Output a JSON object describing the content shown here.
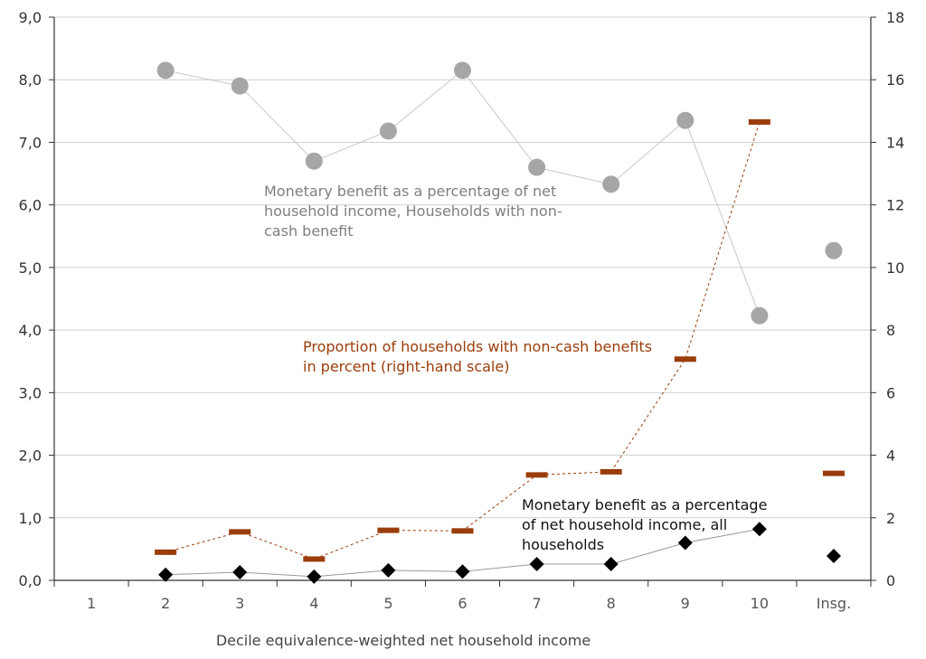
{
  "chart_data": {
    "type": "line",
    "xlabel": "Decile equivalence-weighted net household income",
    "categories": [
      "1",
      "2",
      "3",
      "4",
      "5",
      "6",
      "7",
      "8",
      "9",
      "10",
      "Insg."
    ],
    "y_left": {
      "ylim": [
        0,
        9
      ],
      "ticks": [
        "0,0",
        "1,0",
        "2,0",
        "3,0",
        "4,0",
        "5,0",
        "6,0",
        "7,0",
        "8,0",
        "9,0"
      ]
    },
    "y_right": {
      "ylim": [
        0,
        18
      ],
      "ticks": [
        "0",
        "2",
        "4",
        "6",
        "8",
        "10",
        "12",
        "14",
        "16",
        "18"
      ]
    },
    "grid": true,
    "series": [
      {
        "axis": "left",
        "marker": "circle",
        "color": "#a6a6a6",
        "connected_categories": [
          "2",
          "3",
          "4",
          "5",
          "6",
          "7",
          "8",
          "9",
          "10"
        ],
        "values": [
          null,
          8.15,
          7.9,
          6.7,
          7.18,
          8.15,
          6.6,
          6.33,
          7.35,
          4.23,
          5.27
        ],
        "annotation": [
          "Monetary benefit as a percentage of net",
          "household income, Households with non-",
          "cash benefit"
        ],
        "annotation_color": "#7f7f7f"
      },
      {
        "axis": "right",
        "marker": "dash",
        "color": "#9a3d0a",
        "connected_categories": [
          "2",
          "3",
          "4",
          "5",
          "6",
          "7",
          "8",
          "9",
          "10"
        ],
        "values": [
          null,
          0.9,
          1.55,
          0.68,
          1.6,
          1.58,
          3.37,
          3.47,
          7.07,
          14.65,
          3.42
        ],
        "annotation": [
          "Proportion of households with non-cash benefits",
          "in percent (right-hand scale)"
        ],
        "annotation_color": "#9a3d0a"
      },
      {
        "axis": "left",
        "marker": "diamond",
        "color": "#000000",
        "connected_categories": [
          "2",
          "3",
          "4",
          "5",
          "6",
          "7",
          "8",
          "9",
          "10"
        ],
        "values": [
          null,
          0.09,
          0.13,
          0.06,
          0.16,
          0.14,
          0.26,
          0.26,
          0.6,
          0.82,
          0.39
        ],
        "annotation": [
          "Monetary benefit as a percentage",
          "of net household income, all",
          "households"
        ],
        "annotation_color": "#111111"
      }
    ]
  }
}
